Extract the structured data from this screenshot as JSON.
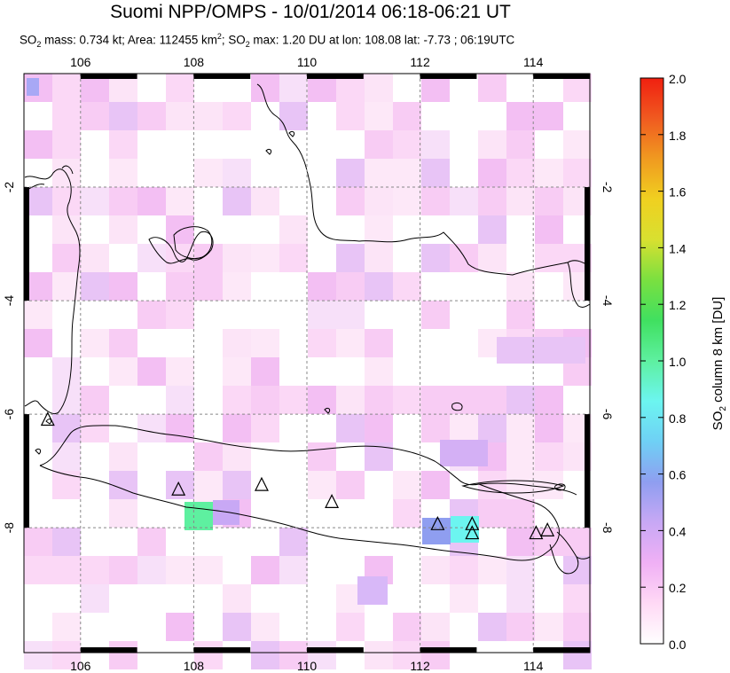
{
  "title": "Suomi NPP/OMPS - 10/01/2014 06:18-06:21 UT",
  "subtitle": {
    "so2_mass_label": "SO",
    "so2_mass_text": " mass: 0.734 kt; Area: 112455 km",
    "area_text": "; SO",
    "max_text": " max: 1.20 DU at lon: 108.08 lat: -7.73 ; 06:19UTC"
  },
  "map": {
    "lon_range": [
      105,
      115
    ],
    "lat_range": [
      -10.2,
      0
    ],
    "lon_ticks": [
      "106",
      "108",
      "110",
      "112",
      "114"
    ],
    "lat_ticks": [
      "-2",
      "-4",
      "-6",
      "-8"
    ],
    "volcano_icon": "triangle-icon",
    "volcanoes": [
      {
        "lon": 105.42,
        "lat": -6.1
      },
      {
        "lon": 107.73,
        "lat": -7.33
      },
      {
        "lon": 109.2,
        "lat": -7.25
      },
      {
        "lon": 110.44,
        "lat": -7.55
      },
      {
        "lon": 112.31,
        "lat": -7.94
      },
      {
        "lon": 112.92,
        "lat": -7.94
      },
      {
        "lon": 112.92,
        "lat": -8.1
      },
      {
        "lon": 114.05,
        "lat": -8.1
      },
      {
        "lon": 114.25,
        "lat": -8.05
      }
    ]
  },
  "colorbar": {
    "label_main": "SO",
    "label_sub": "2",
    "label_rest": " column 8 km [DU]",
    "ticks": [
      "0.0",
      "0.2",
      "0.4",
      "0.6",
      "0.8",
      "1.0",
      "1.2",
      "1.4",
      "1.6",
      "1.8",
      "2.0"
    ],
    "range": [
      0,
      2
    ],
    "colors": [
      "#ffffff",
      "#ffd9f5",
      "#f0b0f5",
      "#c8a8f5",
      "#8f9ef0",
      "#6fd0f5",
      "#6cf5f0",
      "#5ef0a0",
      "#40e060",
      "#7ae040",
      "#d8e030",
      "#f0d020",
      "#f09a20",
      "#f05a20",
      "#f02010"
    ]
  }
}
